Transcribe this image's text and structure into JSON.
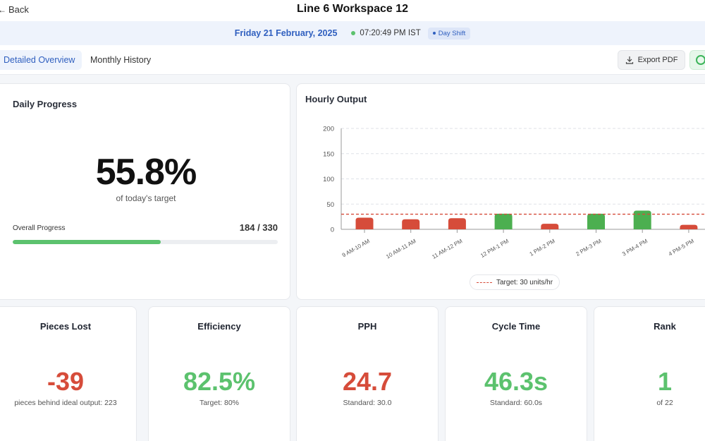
{
  "header": {
    "back_label": "Back",
    "title": "Line 6 Workspace 12"
  },
  "datebar": {
    "date": "Friday 21 February, 2025",
    "time": "07:20:49 PM IST",
    "shift": "Day Shift"
  },
  "tabs": [
    {
      "label": "Detailed Overview",
      "active": true
    },
    {
      "label": "Monthly History",
      "active": false
    }
  ],
  "actions": {
    "export_label": "Export PDF",
    "share_icon": "whatsapp-icon"
  },
  "progress": {
    "title": "Daily Progress",
    "percent": "55.8%",
    "subtitle": "of today's target",
    "overall_label": "Overall Progress",
    "count": "184 / 330",
    "fraction": 0.558
  },
  "hourly": {
    "title": "Hourly Output",
    "legend": "Target: 30 units/hr"
  },
  "chart_data": {
    "type": "bar",
    "title": "Hourly Output",
    "categories": [
      "9 AM-10 AM",
      "10 AM-11 AM",
      "11 AM-12 PM",
      "12 PM-1 PM",
      "1 PM-2 PM",
      "2 PM-3 PM",
      "3 PM-4 PM",
      "4 PM-5 PM"
    ],
    "values": [
      23,
      20,
      22,
      31,
      11,
      31,
      37,
      9
    ],
    "target": 30,
    "ylim": [
      0,
      200
    ],
    "yticks": [
      0,
      50,
      100,
      150,
      200
    ],
    "grid": true,
    "colors": {
      "below_target": "#d64c3a",
      "above_target": "#4caf50"
    }
  },
  "metrics": [
    {
      "title": "Pieces Lost",
      "value": "-39",
      "subtitle": "pieces behind ideal output: 223",
      "status": "red"
    },
    {
      "title": "Efficiency",
      "value": "82.5%",
      "subtitle": "Target: 80%",
      "status": "green"
    },
    {
      "title": "PPH",
      "value": "24.7",
      "subtitle": "Standard: 30.0",
      "status": "red"
    },
    {
      "title": "Cycle Time",
      "value": "46.3s",
      "subtitle": "Standard: 60.0s",
      "status": "green"
    },
    {
      "title": "Rank",
      "value": "1",
      "subtitle": "of 22",
      "status": "green"
    }
  ]
}
